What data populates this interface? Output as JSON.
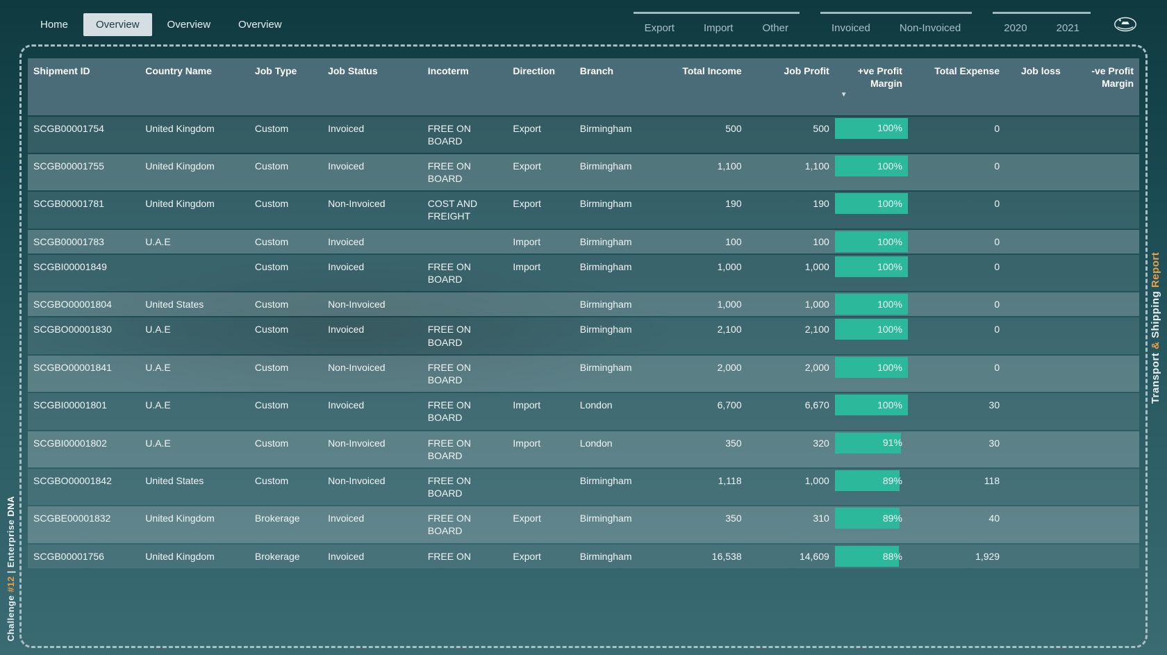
{
  "nav": {
    "tabs": [
      {
        "label": "Home",
        "active": false
      },
      {
        "label": "Overview",
        "active": true
      },
      {
        "label": "Overview",
        "active": false
      },
      {
        "label": "Overview",
        "active": false
      }
    ],
    "slicer_direction": [
      "Export",
      "Import",
      "Other"
    ],
    "slicer_invoice": [
      "Invoiced",
      "Non-Invoiced"
    ],
    "slicer_year": [
      "2020",
      "2021"
    ]
  },
  "title_right": {
    "pre": "Transport ",
    "amp": "&",
    "mid": " Shipping ",
    "rep": "Report"
  },
  "title_left": {
    "pre": "Challenge ",
    "num": "#12",
    "sep": "  |  ",
    "brand1": "Enterprise ",
    "brand2": "DNA"
  },
  "table": {
    "columns": [
      {
        "key": "id",
        "label": "Shipment ID",
        "align": "left"
      },
      {
        "key": "ctry",
        "label": "Country Name",
        "align": "left"
      },
      {
        "key": "jt",
        "label": "Job Type",
        "align": "left"
      },
      {
        "key": "js",
        "label": "Job Status",
        "align": "left"
      },
      {
        "key": "inc",
        "label": "Incoterm",
        "align": "left"
      },
      {
        "key": "dir",
        "label": "Direction",
        "align": "left"
      },
      {
        "key": "br",
        "label": "Branch",
        "align": "left"
      },
      {
        "key": "ti",
        "label": "Total Income",
        "align": "right"
      },
      {
        "key": "jp",
        "label": "Job Profit",
        "align": "right"
      },
      {
        "key": "pm",
        "label": "+ve Profit Margin",
        "align": "right",
        "sorted": "desc"
      },
      {
        "key": "te",
        "label": "Total Expense",
        "align": "right"
      },
      {
        "key": "jl",
        "label": "Job loss",
        "align": "right"
      },
      {
        "key": "nm",
        "label": "-ve Profit Margin",
        "align": "right"
      }
    ],
    "pm_bar_color": "#2bb89b",
    "header_bg": "#4a6b78",
    "rows": [
      {
        "id": "SCGB00001754",
        "ctry": "United Kingdom",
        "jt": "Custom",
        "js": "Invoiced",
        "inc": "FREE ON BOARD",
        "dir": "Export",
        "br": "Birmingham",
        "ti": "500",
        "jp": "500",
        "pm": 100,
        "te": "0",
        "jl": "",
        "nm": ""
      },
      {
        "id": "SCGB00001755",
        "ctry": "United Kingdom",
        "jt": "Custom",
        "js": "Invoiced",
        "inc": "FREE ON BOARD",
        "dir": "Export",
        "br": "Birmingham",
        "ti": "1,100",
        "jp": "1,100",
        "pm": 100,
        "te": "0",
        "jl": "",
        "nm": ""
      },
      {
        "id": "SCGB00001781",
        "ctry": "United Kingdom",
        "jt": "Custom",
        "js": "Non-Invoiced",
        "inc": "COST AND FREIGHT",
        "dir": "Export",
        "br": "Birmingham",
        "ti": "190",
        "jp": "190",
        "pm": 100,
        "te": "0",
        "jl": "",
        "nm": ""
      },
      {
        "id": "SCGB00001783",
        "ctry": "U.A.E",
        "jt": "Custom",
        "js": "Invoiced",
        "inc": "",
        "dir": "Import",
        "br": "Birmingham",
        "ti": "100",
        "jp": "100",
        "pm": 100,
        "te": "0",
        "jl": "",
        "nm": ""
      },
      {
        "id": "SCGBI00001849",
        "ctry": "",
        "jt": "Custom",
        "js": "Invoiced",
        "inc": "FREE ON BOARD",
        "dir": "Import",
        "br": "Birmingham",
        "ti": "1,000",
        "jp": "1,000",
        "pm": 100,
        "te": "0",
        "jl": "",
        "nm": ""
      },
      {
        "id": "SCGBO00001804",
        "ctry": "United States",
        "jt": "Custom",
        "js": "Non-Invoiced",
        "inc": "",
        "dir": "",
        "br": "Birmingham",
        "ti": "1,000",
        "jp": "1,000",
        "pm": 100,
        "te": "0",
        "jl": "",
        "nm": ""
      },
      {
        "id": "SCGBO00001830",
        "ctry": "U.A.E",
        "jt": "Custom",
        "js": "Invoiced",
        "inc": "FREE ON BOARD",
        "dir": "",
        "br": "Birmingham",
        "ti": "2,100",
        "jp": "2,100",
        "pm": 100,
        "te": "0",
        "jl": "",
        "nm": ""
      },
      {
        "id": "SCGBO00001841",
        "ctry": "U.A.E",
        "jt": "Custom",
        "js": "Non-Invoiced",
        "inc": "FREE ON BOARD",
        "dir": "",
        "br": "Birmingham",
        "ti": "2,000",
        "jp": "2,000",
        "pm": 100,
        "te": "0",
        "jl": "",
        "nm": ""
      },
      {
        "id": "SCGBI00001801",
        "ctry": "U.A.E",
        "jt": "Custom",
        "js": "Invoiced",
        "inc": "FREE ON BOARD",
        "dir": "Import",
        "br": "London",
        "ti": "6,700",
        "jp": "6,670",
        "pm": 100,
        "te": "30",
        "jl": "",
        "nm": ""
      },
      {
        "id": "SCGBI00001802",
        "ctry": "U.A.E",
        "jt": "Custom",
        "js": "Non-Invoiced",
        "inc": "FREE ON BOARD",
        "dir": "Import",
        "br": "London",
        "ti": "350",
        "jp": "320",
        "pm": 91,
        "te": "30",
        "jl": "",
        "nm": ""
      },
      {
        "id": "SCGBO00001842",
        "ctry": "United States",
        "jt": "Custom",
        "js": "Non-Invoiced",
        "inc": "FREE ON BOARD",
        "dir": "",
        "br": "Birmingham",
        "ti": "1,118",
        "jp": "1,000",
        "pm": 89,
        "te": "118",
        "jl": "",
        "nm": ""
      },
      {
        "id": "SCGBE00001832",
        "ctry": "United Kingdom",
        "jt": "Brokerage",
        "js": "Invoiced",
        "inc": "FREE ON BOARD",
        "dir": "Export",
        "br": "Birmingham",
        "ti": "350",
        "jp": "310",
        "pm": 89,
        "te": "40",
        "jl": "",
        "nm": ""
      },
      {
        "id": "SCGB00001756",
        "ctry": "United Kingdom",
        "jt": "Brokerage",
        "js": "Invoiced",
        "inc": "FREE ON",
        "dir": "Export",
        "br": "Birmingham",
        "ti": "16,538",
        "jp": "14,609",
        "pm": 88,
        "te": "1,929",
        "jl": "",
        "nm": ""
      }
    ]
  }
}
